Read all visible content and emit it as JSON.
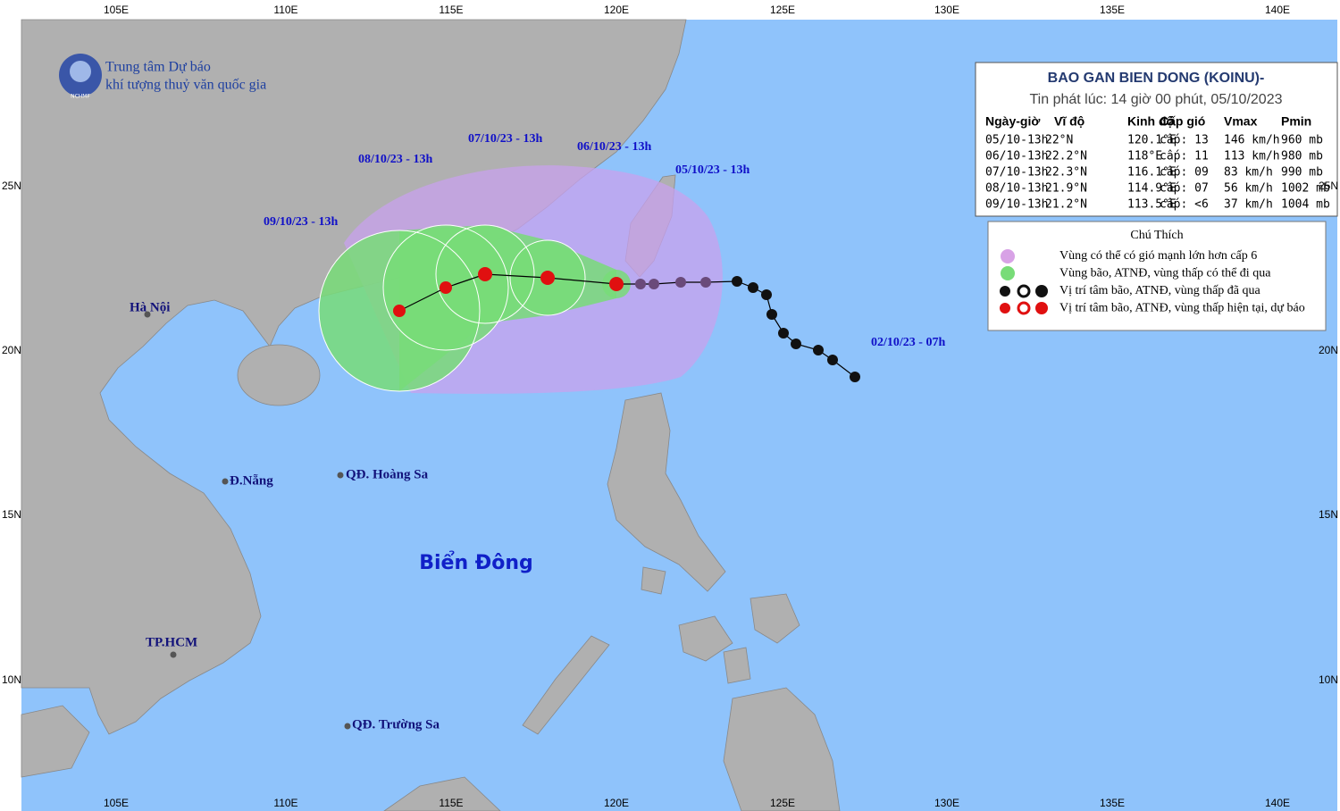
{
  "header": {
    "org_line1": "Trung tâm Dự báo",
    "org_line2": "khí tượng thuỷ văn quốc gia",
    "logo_text": "NCHMF"
  },
  "grid": {
    "lon_labels": [
      "105E",
      "110E",
      "115E",
      "120E",
      "125E",
      "130E",
      "135E",
      "140E"
    ],
    "lat_labels": [
      "25N",
      "20N",
      "15N",
      "10N"
    ]
  },
  "info_box": {
    "title": "BAO GAN BIEN DONG (KOINU)-",
    "issued": "Tin phát lúc: 14 giờ 00 phút, 05/10/2023",
    "columns": [
      "Ngày-giờ",
      "Vĩ độ",
      "Kinh độ",
      "Cấp gió",
      "Vmax",
      "Pmin"
    ],
    "rows": [
      [
        "05/10-13h",
        "22°N",
        "120.1°E",
        "cấp: 13",
        "146 km/h",
        "960 mb"
      ],
      [
        "06/10-13h",
        "22.2°N",
        "118°E",
        "cấp: 11",
        "113 km/h",
        "980 mb"
      ],
      [
        "07/10-13h",
        "22.3°N",
        "116.1°E",
        "cấp: 09",
        "83 km/h",
        "990 mb"
      ],
      [
        "08/10-13h",
        "21.9°N",
        "114.9°E",
        "cấp: 07",
        "56 km/h",
        "1002 mb"
      ],
      [
        "09/10-13h",
        "21.2°N",
        "113.5°E",
        "cấp: <6",
        "37 km/h",
        "1004 mb"
      ]
    ]
  },
  "legend": {
    "title": "Chú Thích",
    "items": [
      "Vùng có thể có gió mạnh lớn hơn cấp 6",
      "Vùng bão, ATNĐ, vùng thấp có thể đi qua",
      "Vị trí tâm bão, ATNĐ, vùng thấp đã qua",
      "Vị trí tâm bão, ATNĐ, vùng thấp hiện tại, dự báo"
    ]
  },
  "track_labels": [
    "09/10/23 - 13h",
    "08/10/23 - 13h",
    "07/10/23 - 13h",
    "06/10/23 - 13h",
    "05/10/23 - 13h",
    "02/10/23 - 07h"
  ],
  "places": [
    "Hà Nội",
    "Đ.Nẵng",
    "QĐ. Hoàng Sa",
    "TP.HCM",
    "QĐ. Trường Sa"
  ],
  "sea_label": "Biển Đông"
}
